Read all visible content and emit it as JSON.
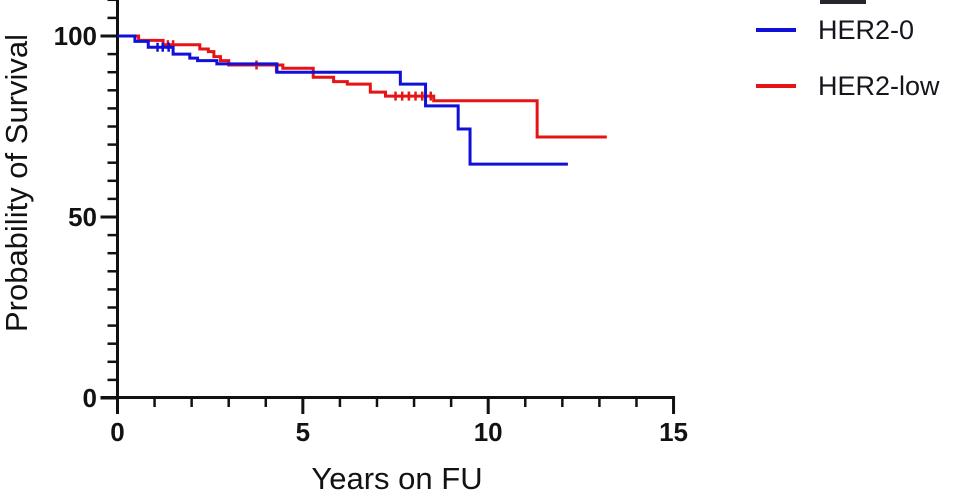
{
  "figure": {
    "y_axis": {
      "title": "Probability of Survival",
      "major_ticks": [
        {
          "value": 0,
          "label": "0"
        },
        {
          "value": 50,
          "label": "50"
        },
        {
          "value": 100,
          "label": "100"
        }
      ],
      "minor_tick_step": 5,
      "range": [
        0,
        110
      ]
    },
    "x_axis": {
      "title": "Years on FU",
      "major_ticks": [
        {
          "value": 0,
          "label": "0"
        },
        {
          "value": 5,
          "label": "5"
        },
        {
          "value": 10,
          "label": "10"
        },
        {
          "value": 15,
          "label": "15"
        }
      ],
      "minor_tick_step": 1,
      "range": [
        0,
        15
      ]
    },
    "legend": {
      "entries": [
        {
          "label": "HER2-0",
          "color": "#1010d8"
        },
        {
          "label": "HER2-low",
          "color": "#e61414"
        }
      ]
    },
    "colors": {
      "axis": "#111111",
      "text": "#121212"
    }
  },
  "chart_data": {
    "type": "line",
    "subtype": "kaplan-meier-step-survival",
    "title": "",
    "xlabel": "Years on FU",
    "ylabel": "Probability of Survival",
    "xlim": [
      0,
      15
    ],
    "ylim": [
      0,
      110
    ],
    "grid": false,
    "legend_position": "top-right",
    "series": [
      {
        "name": "HER2-0",
        "color": "#1010d8",
        "steps": [
          [
            0,
            100
          ],
          [
            0.47,
            98.5
          ],
          [
            0.83,
            96.9
          ],
          [
            1.5,
            95.0
          ],
          [
            1.95,
            93.9
          ],
          [
            2.16,
            93.2
          ],
          [
            2.68,
            92.3
          ],
          [
            4.3,
            90.0
          ],
          [
            7.63,
            86.7
          ],
          [
            8.31,
            80.7
          ],
          [
            9.19,
            74.3
          ],
          [
            9.51,
            64.6
          ]
        ],
        "end_x": 12.15,
        "censor_marks": [
          [
            1.08,
            96.9
          ],
          [
            1.22,
            96.9
          ],
          [
            1.38,
            96.9
          ]
        ]
      },
      {
        "name": "HER2-low",
        "color": "#e61414",
        "steps": [
          [
            0,
            100
          ],
          [
            0.57,
            98.8
          ],
          [
            1.23,
            97.6
          ],
          [
            2.22,
            96.4
          ],
          [
            2.45,
            95.7
          ],
          [
            2.6,
            94.3
          ],
          [
            2.78,
            93.2
          ],
          [
            3.0,
            92.0
          ],
          [
            4.46,
            91.1
          ],
          [
            5.28,
            88.6
          ],
          [
            5.83,
            87.4
          ],
          [
            6.2,
            86.7
          ],
          [
            6.82,
            84.5
          ],
          [
            7.23,
            83.4
          ],
          [
            8.53,
            82.1
          ],
          [
            11.32,
            72.1
          ]
        ],
        "end_x": 13.2,
        "censor_marks": [
          [
            1.36,
            97.6
          ],
          [
            1.5,
            97.6
          ],
          [
            3.75,
            92.0
          ],
          [
            4.28,
            91.1
          ],
          [
            7.5,
            83.4
          ],
          [
            7.68,
            83.4
          ],
          [
            7.86,
            83.4
          ],
          [
            8.04,
            83.4
          ],
          [
            8.22,
            83.4
          ],
          [
            8.45,
            83.4
          ]
        ]
      }
    ]
  }
}
